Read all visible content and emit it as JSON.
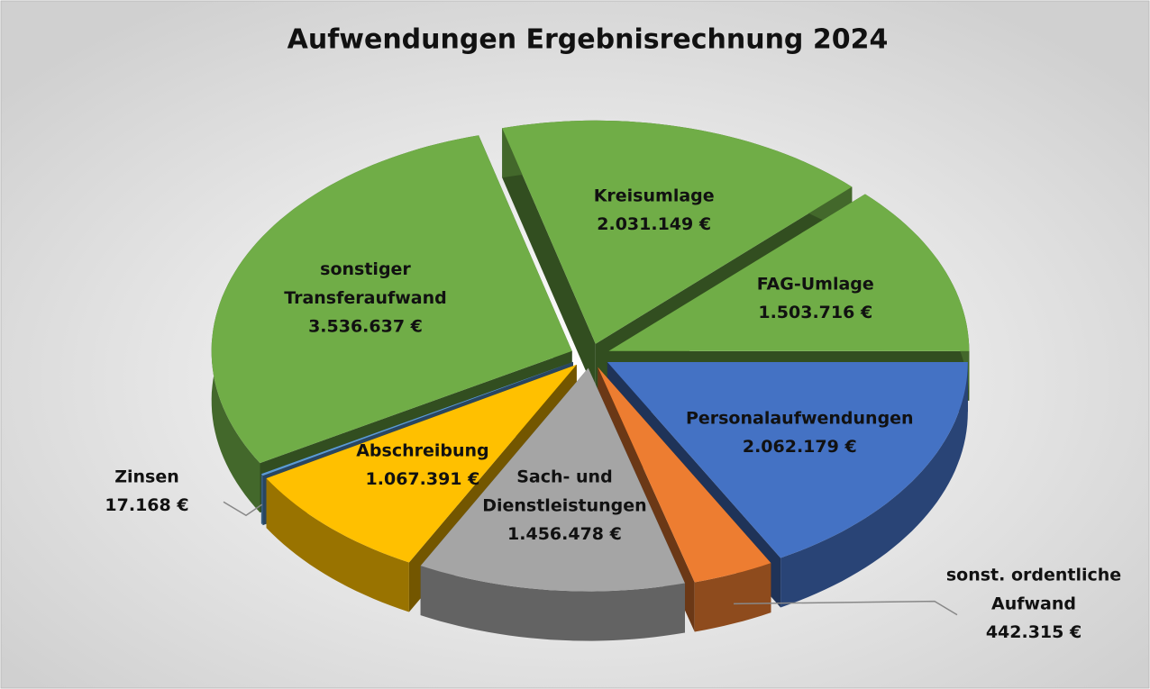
{
  "chart_data": {
    "type": "pie3d",
    "title": "Aufwendungen Ergebnisrechnung 2024",
    "categories": [
      "Kreisumlage",
      "FAG-Umlage",
      "Personalaufwendungen",
      "sonst. ordentliche Aufwand",
      "Sach- und Dienstleistungen",
      "Abschreibung",
      "Zinsen",
      "sonstiger Transferaufwand"
    ],
    "values": [
      2031149,
      1503716,
      2062179,
      442315,
      1456478,
      1067391,
      17168,
      3536637
    ],
    "value_labels": [
      "2.031.149 €",
      "1.503.716 €",
      "2.062.179 €",
      "442.315 €",
      "1.456.478 €",
      "1.067.391 €",
      "17.168 €",
      "3.536.637 €"
    ],
    "colors": [
      "#70ad47",
      "#70ad47",
      "#4472c4",
      "#ed7d31",
      "#a5a5a5",
      "#ffc000",
      "#5b9bd5",
      "#70ad47"
    ]
  }
}
